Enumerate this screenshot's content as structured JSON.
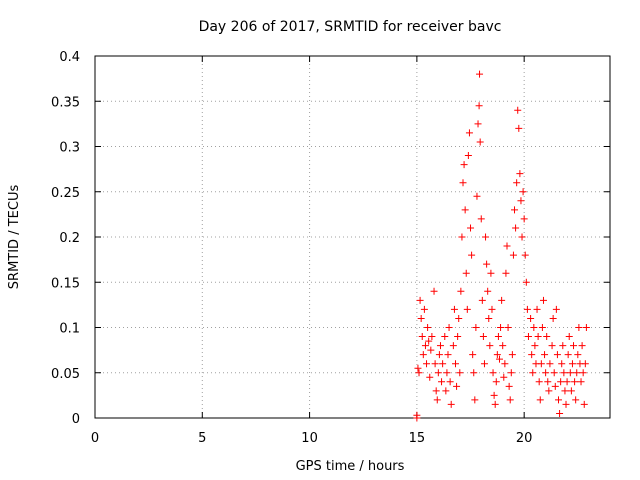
{
  "chart_data": {
    "type": "scatter",
    "title": "Day 206 of 2017, SRMTID for receiver bavc",
    "xlabel": "GPS time / hours",
    "ylabel": "SRMTID / TECUs",
    "xlim": [
      0,
      24
    ],
    "ylim": [
      0,
      0.4
    ],
    "x_ticks": [
      0,
      5,
      10,
      15,
      20
    ],
    "x_tick_labels": [
      "0",
      "5",
      "10",
      "15",
      "20"
    ],
    "y_ticks": [
      0,
      0.05,
      0.1,
      0.15,
      0.2,
      0.25,
      0.3,
      0.35,
      0.4
    ],
    "y_tick_labels": [
      "0",
      "0.05",
      "0.1",
      "0.15",
      "0.2",
      "0.25",
      "0.3",
      "0.35",
      "0.4"
    ],
    "grid": true,
    "marker": "+",
    "color": "#ff0000",
    "series": [
      {
        "name": "SRMTID",
        "points": [
          [
            15.0,
            0.0
          ],
          [
            15.0,
            0.003
          ],
          [
            15.05,
            0.055
          ],
          [
            15.1,
            0.05
          ],
          [
            15.15,
            0.13
          ],
          [
            15.2,
            0.11
          ],
          [
            15.25,
            0.09
          ],
          [
            15.3,
            0.07
          ],
          [
            15.35,
            0.12
          ],
          [
            15.4,
            0.08
          ],
          [
            15.45,
            0.06
          ],
          [
            15.5,
            0.1
          ],
          [
            15.55,
            0.085
          ],
          [
            15.6,
            0.045
          ],
          [
            15.65,
            0.075
          ],
          [
            15.7,
            0.09
          ],
          [
            15.8,
            0.14
          ],
          [
            15.85,
            0.06
          ],
          [
            15.9,
            0.03
          ],
          [
            15.95,
            0.02
          ],
          [
            16.0,
            0.05
          ],
          [
            16.05,
            0.07
          ],
          [
            16.1,
            0.08
          ],
          [
            16.15,
            0.04
          ],
          [
            16.2,
            0.06
          ],
          [
            16.3,
            0.09
          ],
          [
            16.35,
            0.03
          ],
          [
            16.4,
            0.05
          ],
          [
            16.45,
            0.07
          ],
          [
            16.5,
            0.1
          ],
          [
            16.55,
            0.04
          ],
          [
            16.6,
            0.015
          ],
          [
            16.7,
            0.08
          ],
          [
            16.75,
            0.12
          ],
          [
            16.8,
            0.06
          ],
          [
            16.85,
            0.035
          ],
          [
            16.9,
            0.09
          ],
          [
            16.95,
            0.11
          ],
          [
            17.0,
            0.05
          ],
          [
            17.05,
            0.14
          ],
          [
            17.1,
            0.2
          ],
          [
            17.15,
            0.26
          ],
          [
            17.2,
            0.28
          ],
          [
            17.25,
            0.23
          ],
          [
            17.3,
            0.16
          ],
          [
            17.35,
            0.12
          ],
          [
            17.4,
            0.29
          ],
          [
            17.45,
            0.315
          ],
          [
            17.5,
            0.21
          ],
          [
            17.55,
            0.18
          ],
          [
            17.6,
            0.07
          ],
          [
            17.65,
            0.05
          ],
          [
            17.7,
            0.02
          ],
          [
            17.75,
            0.1
          ],
          [
            17.8,
            0.245
          ],
          [
            17.85,
            0.325
          ],
          [
            17.9,
            0.345
          ],
          [
            17.92,
            0.38
          ],
          [
            17.95,
            0.305
          ],
          [
            18.0,
            0.22
          ],
          [
            18.05,
            0.13
          ],
          [
            18.1,
            0.09
          ],
          [
            18.15,
            0.06
          ],
          [
            18.2,
            0.2
          ],
          [
            18.25,
            0.17
          ],
          [
            18.3,
            0.14
          ],
          [
            18.35,
            0.11
          ],
          [
            18.4,
            0.08
          ],
          [
            18.45,
            0.16
          ],
          [
            18.5,
            0.12
          ],
          [
            18.55,
            0.05
          ],
          [
            18.6,
            0.025
          ],
          [
            18.65,
            0.015
          ],
          [
            18.7,
            0.04
          ],
          [
            18.75,
            0.07
          ],
          [
            18.8,
            0.09
          ],
          [
            18.85,
            0.065
          ],
          [
            18.9,
            0.1
          ],
          [
            18.95,
            0.13
          ],
          [
            19.0,
            0.08
          ],
          [
            19.05,
            0.045
          ],
          [
            19.1,
            0.06
          ],
          [
            19.15,
            0.16
          ],
          [
            19.2,
            0.19
          ],
          [
            19.25,
            0.1
          ],
          [
            19.3,
            0.035
          ],
          [
            19.35,
            0.02
          ],
          [
            19.4,
            0.05
          ],
          [
            19.45,
            0.07
          ],
          [
            19.5,
            0.18
          ],
          [
            19.55,
            0.23
          ],
          [
            19.6,
            0.21
          ],
          [
            19.65,
            0.26
          ],
          [
            19.7,
            0.34
          ],
          [
            19.75,
            0.32
          ],
          [
            19.8,
            0.27
          ],
          [
            19.85,
            0.24
          ],
          [
            19.9,
            0.2
          ],
          [
            19.95,
            0.25
          ],
          [
            20.0,
            0.22
          ],
          [
            20.05,
            0.18
          ],
          [
            20.1,
            0.15
          ],
          [
            20.15,
            0.12
          ],
          [
            20.2,
            0.09
          ],
          [
            20.3,
            0.11
          ],
          [
            20.35,
            0.07
          ],
          [
            20.4,
            0.05
          ],
          [
            20.45,
            0.1
          ],
          [
            20.5,
            0.08
          ],
          [
            20.55,
            0.06
          ],
          [
            20.6,
            0.12
          ],
          [
            20.65,
            0.09
          ],
          [
            20.7,
            0.04
          ],
          [
            20.75,
            0.02
          ],
          [
            20.8,
            0.06
          ],
          [
            20.85,
            0.1
          ],
          [
            20.9,
            0.13
          ],
          [
            20.95,
            0.07
          ],
          [
            21.0,
            0.05
          ],
          [
            21.05,
            0.09
          ],
          [
            21.1,
            0.04
          ],
          [
            21.15,
            0.03
          ],
          [
            21.2,
            0.06
          ],
          [
            21.3,
            0.08
          ],
          [
            21.35,
            0.11
          ],
          [
            21.4,
            0.05
          ],
          [
            21.45,
            0.035
          ],
          [
            21.5,
            0.12
          ],
          [
            21.55,
            0.07
          ],
          [
            21.6,
            0.02
          ],
          [
            21.65,
            0.005
          ],
          [
            21.7,
            0.04
          ],
          [
            21.75,
            0.06
          ],
          [
            21.8,
            0.08
          ],
          [
            21.85,
            0.05
          ],
          [
            21.9,
            0.03
          ],
          [
            21.95,
            0.015
          ],
          [
            22.0,
            0.04
          ],
          [
            22.05,
            0.07
          ],
          [
            22.1,
            0.09
          ],
          [
            22.15,
            0.05
          ],
          [
            22.2,
            0.03
          ],
          [
            22.25,
            0.06
          ],
          [
            22.3,
            0.08
          ],
          [
            22.35,
            0.04
          ],
          [
            22.4,
            0.02
          ],
          [
            22.45,
            0.05
          ],
          [
            22.5,
            0.07
          ],
          [
            22.55,
            0.1
          ],
          [
            22.6,
            0.06
          ],
          [
            22.65,
            0.04
          ],
          [
            22.7,
            0.08
          ],
          [
            22.75,
            0.05
          ],
          [
            22.8,
            0.015
          ],
          [
            22.85,
            0.06
          ],
          [
            22.9,
            0.1
          ]
        ]
      }
    ]
  }
}
